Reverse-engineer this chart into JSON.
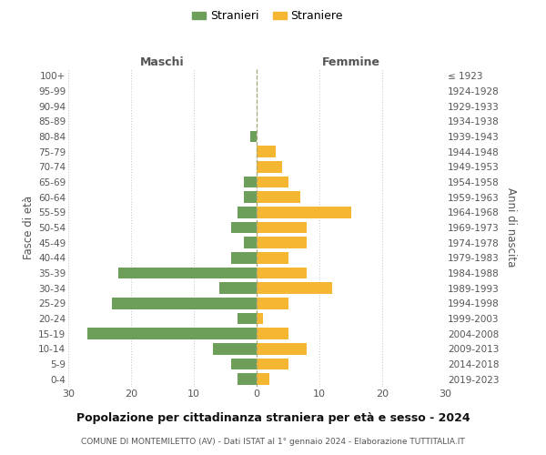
{
  "age_groups": [
    "100+",
    "95-99",
    "90-94",
    "85-89",
    "80-84",
    "75-79",
    "70-74",
    "65-69",
    "60-64",
    "55-59",
    "50-54",
    "45-49",
    "40-44",
    "35-39",
    "30-34",
    "25-29",
    "20-24",
    "15-19",
    "10-14",
    "5-9",
    "0-4"
  ],
  "birth_years": [
    "≤ 1923",
    "1924-1928",
    "1929-1933",
    "1934-1938",
    "1939-1943",
    "1944-1948",
    "1949-1953",
    "1954-1958",
    "1959-1963",
    "1964-1968",
    "1969-1973",
    "1974-1978",
    "1979-1983",
    "1984-1988",
    "1989-1993",
    "1994-1998",
    "1999-2003",
    "2004-2008",
    "2009-2013",
    "2014-2018",
    "2019-2023"
  ],
  "maschi": [
    0,
    0,
    0,
    0,
    1,
    0,
    0,
    2,
    2,
    3,
    4,
    2,
    4,
    22,
    6,
    23,
    3,
    27,
    7,
    4,
    3
  ],
  "femmine": [
    0,
    0,
    0,
    0,
    0,
    3,
    4,
    5,
    7,
    15,
    8,
    8,
    5,
    8,
    12,
    5,
    1,
    5,
    8,
    5,
    2
  ],
  "maschi_color": "#6d9e5a",
  "femmine_color": "#f5b731",
  "title": "Popolazione per cittadinanza straniera per età e sesso - 2024",
  "subtitle": "COMUNE DI MONTEMILETTO (AV) - Dati ISTAT al 1° gennaio 2024 - Elaborazione TUTTITALIA.IT",
  "ylabel_left": "Fasce di età",
  "ylabel_right": "Anni di nascita",
  "label_maschi": "Maschi",
  "label_femmine": "Femmine",
  "legend_maschi": "Stranieri",
  "legend_femmine": "Straniere",
  "xlim": 30,
  "background_color": "#ffffff",
  "grid_color": "#cccccc"
}
